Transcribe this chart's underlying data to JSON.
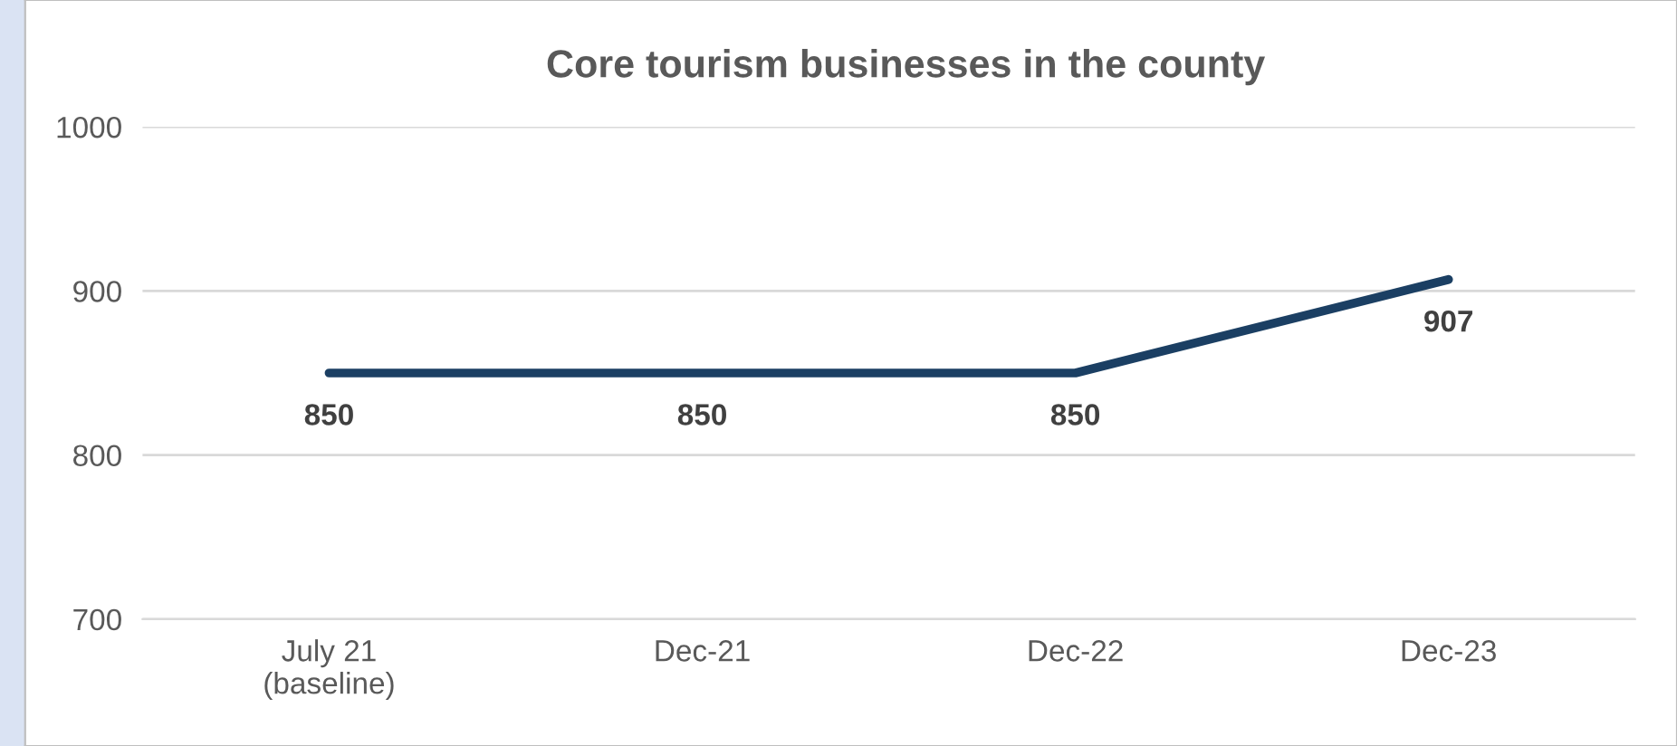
{
  "chart_data": {
    "type": "line",
    "title": "Core tourism businesses in the county",
    "categories": [
      "July 21\n(baseline)",
      "Dec-21",
      "Dec-22",
      "Dec-23"
    ],
    "series": [
      {
        "color": "#1b3f63",
        "values": [
          850,
          850,
          850,
          907
        ]
      }
    ],
    "ylim": [
      700,
      1000
    ],
    "yticks": [
      700,
      800,
      900,
      1000
    ],
    "grid": "y",
    "data_labels": true,
    "marker": "none",
    "line_style": "solid"
  }
}
